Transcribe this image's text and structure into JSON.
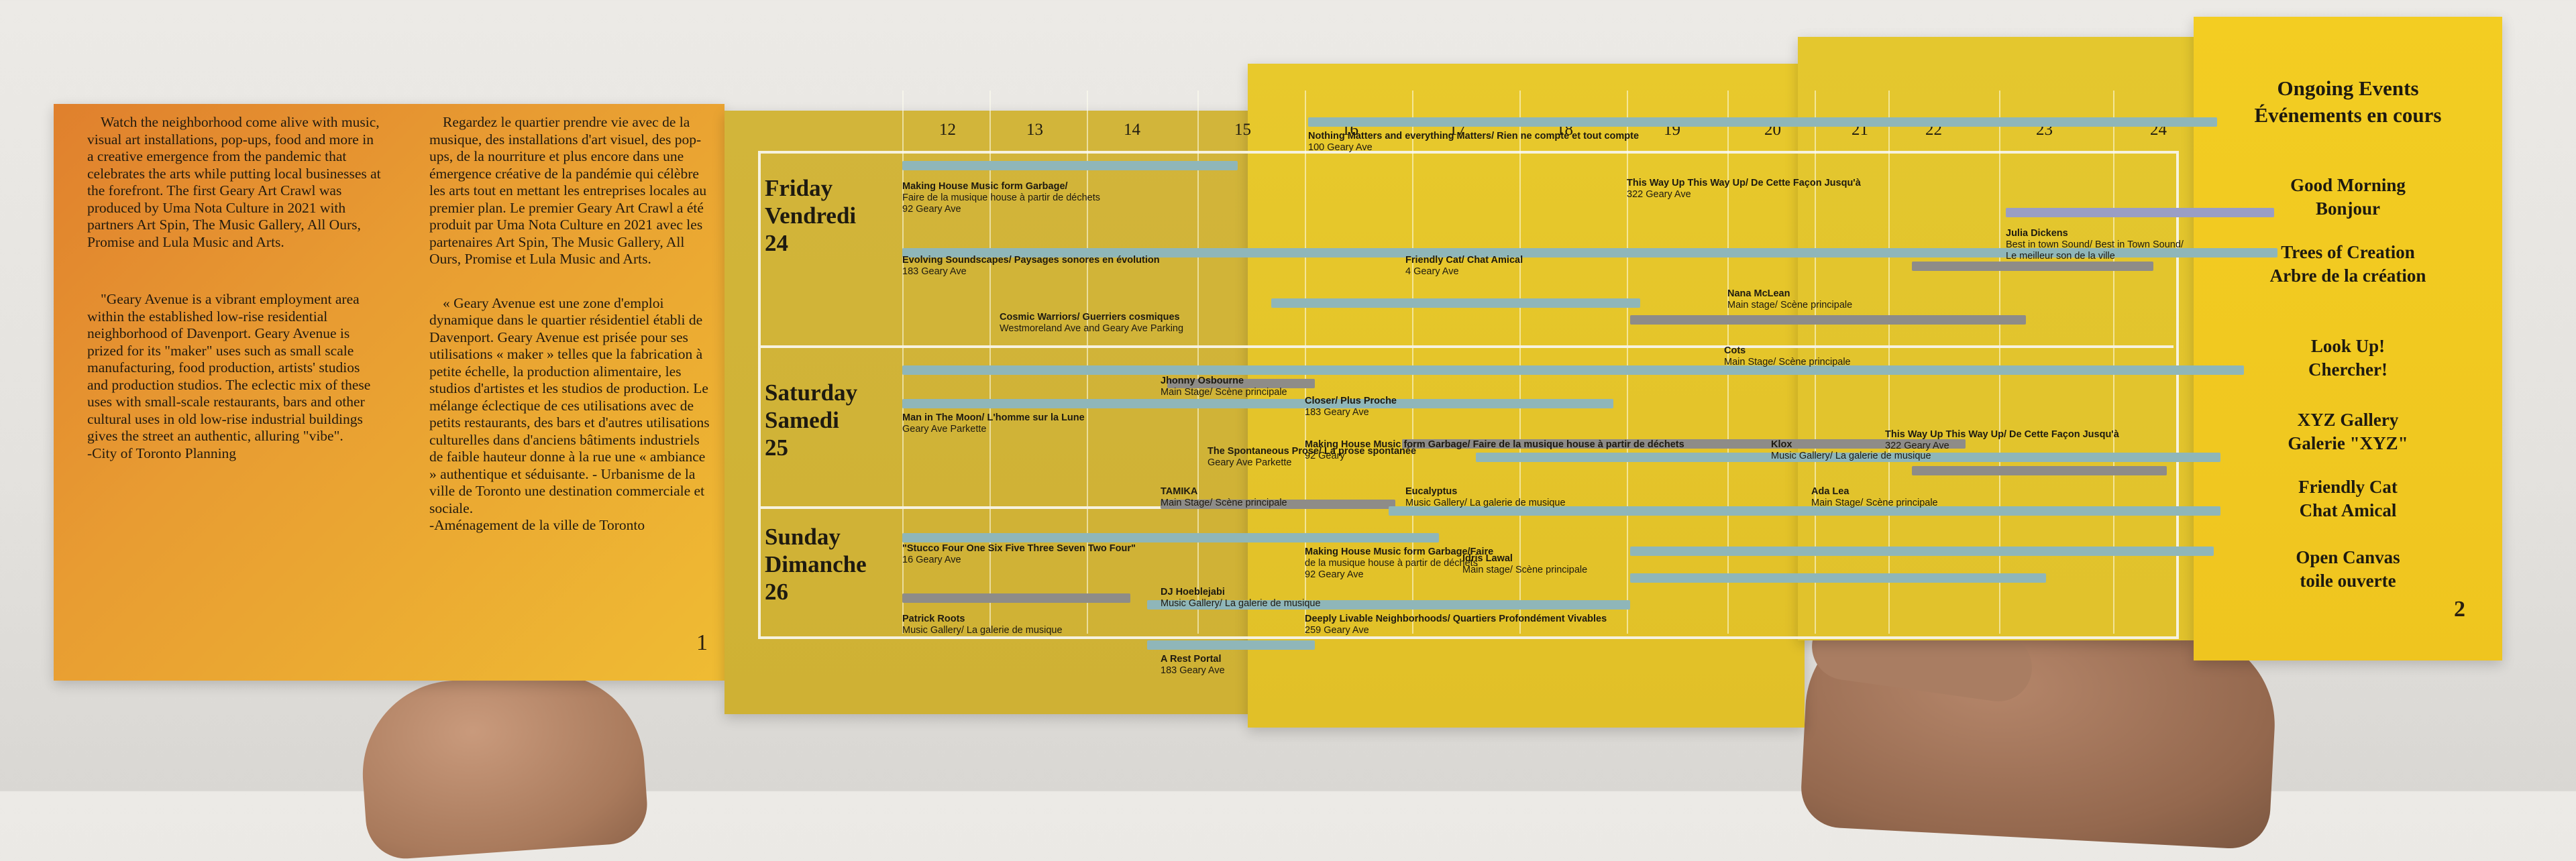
{
  "intro": {
    "en_p1": "Watch the neighborhood come alive with music, visual art installations, pop-ups, food and more in a creative emergence from the pandemic that celebrates the arts while putting local businesses at the forefront. The first Geary Art Crawl was produced by Uma Nota Culture in 2021 with partners Art Spin, The Music Gallery, All Ours, Promise and Lula Music and Arts.",
    "en_p2": "\"Geary Avenue is a vibrant employment area within the established low-rise residential neighborhood of Davenport. Geary Avenue is prized for its \"maker\" uses such as small scale manufacturing, food production, artists' studios and production studios. The eclectic mix of these uses with small-scale restaurants, bars and other cultural uses in old low-rise industrial buildings gives the street an authentic, alluring \"vibe\".",
    "en_credit": "-City of Toronto Planning",
    "fr_p1": "Regardez le quartier prendre vie avec de la musique, des installations d'art visuel, des pop-ups, de la nourriture et plus encore dans une émergence créative de la pandémie qui célèbre les arts tout en mettant les entreprises locales au premier plan. Le premier Geary Art Crawl a été produit par Uma Nota Culture en 2021 avec les partenaires Art Spin, The Music Gallery, All Ours, Promise et Lula Music and Arts.",
    "fr_p2": "« Geary Avenue est une zone d'emploi dynamique dans le quartier résidentiel établi de Davenport. Geary Avenue est prisée pour ses utilisations « maker » telles que la fabrication à petite échelle, la production alimentaire, les studios d'artistes et les studios de production. Le mélange éclectique de ces utilisations avec de petits restaurants, des bars et d'autres utilisations culturelles dans d'anciens bâtiments industriels de faible hauteur donne à la rue une « ambiance » authentique et séduisante. - Urbanisme de la ville de Toronto une destination commerciale et sociale.",
    "fr_credit": "-Aménagement de la ville de Toronto",
    "page": "1"
  },
  "schedule": {
    "hours": [
      "12",
      "13",
      "14",
      "15",
      "16",
      "17",
      "18",
      "19",
      "20",
      "21",
      "22",
      "23",
      "24"
    ],
    "days": [
      {
        "name": "Friday",
        "fr": "Vendredi",
        "num": "24"
      },
      {
        "name": "Saturday",
        "fr": "Samedi",
        "num": "25"
      },
      {
        "name": "Sunday",
        "fr": "Dimanche",
        "num": "26"
      }
    ],
    "events": [
      {
        "title": "Making House Music form Garbage/",
        "sub": "Faire de la musique house à partir de déchets",
        "loc": "92 Geary Ave"
      },
      {
        "title": "Nothing Matters and everything Matters/ Rien ne compte et tout compte",
        "sub": "",
        "loc": "100 Geary Ave"
      },
      {
        "title": "This Way Up This Way Up/ De Cette Façon Jusqu'à",
        "sub": "",
        "loc": "322 Geary Ave"
      },
      {
        "title": "Evolving Soundscapes/ Paysages sonores en évolution",
        "sub": "",
        "loc": "183 Geary Ave"
      },
      {
        "title": "Friendly Cat/ Chat Amical",
        "sub": "",
        "loc": "4 Geary Ave"
      },
      {
        "title": "Julia Dickens",
        "sub": "Best in town Sound/ Best in Town Sound/",
        "loc": "Le meilleur son de la ville"
      },
      {
        "title": "Cosmic Warriors/ Guerriers cosmiques",
        "sub": "",
        "loc": "Westmoreland Ave and Geary Ave Parking"
      },
      {
        "title": "Nana McLean",
        "sub": "",
        "loc": "Main stage/ Scène principale"
      },
      {
        "title": "Jhonny Osbourne",
        "sub": "",
        "loc": "Main Stage/ Scène principale"
      },
      {
        "title": "Cots",
        "sub": "",
        "loc": "Main Stage/ Scène principale"
      },
      {
        "title": "Closer/ Plus Proche",
        "sub": "",
        "loc": "183 Geary Ave"
      },
      {
        "title": "Man in The Moon/ L'homme sur la Lune",
        "sub": "",
        "loc": "Geary Ave Parkette"
      },
      {
        "title": "The Spontaneous Prose/ La prose spontanée",
        "sub": "",
        "loc": "Geary Ave Parkette"
      },
      {
        "title": "Making House Music form Garbage/ Faire de la musique house à partir de déchets",
        "sub": "",
        "loc": "92 Geary"
      },
      {
        "title": "Klox",
        "sub": "",
        "loc": "Music Gallery/ La galerie de musique"
      },
      {
        "title": "This Way Up This Way Up/ De Cette Façon Jusqu'à",
        "sub": "",
        "loc": "322 Geary Ave"
      },
      {
        "title": "TAMIKA",
        "sub": "",
        "loc": "Main Stage/ Scène principale"
      },
      {
        "title": "Eucalyptus",
        "sub": "",
        "loc": "Music Gallery/ La galerie de musique"
      },
      {
        "title": "Ada Lea",
        "sub": "",
        "loc": "Main Stage/ Scène principale"
      },
      {
        "title": "\"Stucco Four One Six Five Three Seven Two Four\"",
        "sub": "",
        "loc": "16 Geary Ave"
      },
      {
        "title": "Making House Music form Garbage/Faire",
        "sub": "de la musique house à partir de déchets",
        "loc": "92 Geary Ave"
      },
      {
        "title": "Idris Lawal",
        "sub": "",
        "loc": "Main stage/ Scène principale"
      },
      {
        "title": "DJ Hoeblejabi",
        "sub": "",
        "loc": "Music Gallery/ La galerie de musique"
      },
      {
        "title": "Patrick Roots",
        "sub": "",
        "loc": "Music Gallery/ La galerie de musique"
      },
      {
        "title": "Deeply Livable Neighborhoods/ Quartiers Profondément Vivables",
        "sub": "",
        "loc": "259 Geary Ave"
      },
      {
        "title": "A Rest Portal",
        "sub": "",
        "loc": "183 Geary Ave"
      }
    ]
  },
  "ongoing": {
    "heading1": "Ongoing Events",
    "heading2": "Événements en cours",
    "items": [
      {
        "en": "Good Morning",
        "fr": "Bonjour"
      },
      {
        "en": "Trees of Creation",
        "fr": "Arbre de la création"
      },
      {
        "en": "Look Up!",
        "fr": "Chercher!"
      },
      {
        "en": "XYZ Gallery",
        "fr": "Galerie \"XYZ\""
      },
      {
        "en": "Friendly Cat",
        "fr": "Chat Amical"
      },
      {
        "en": "Open Canvas",
        "fr": "toile ouverte"
      }
    ],
    "page": "2"
  },
  "colors": {
    "orange": "#e0802d",
    "yellow": "#efc51f",
    "bar_blue": "#8fb6b9",
    "bar_grey": "#8e8c88",
    "bar_lavender": "#9a9ec4"
  }
}
